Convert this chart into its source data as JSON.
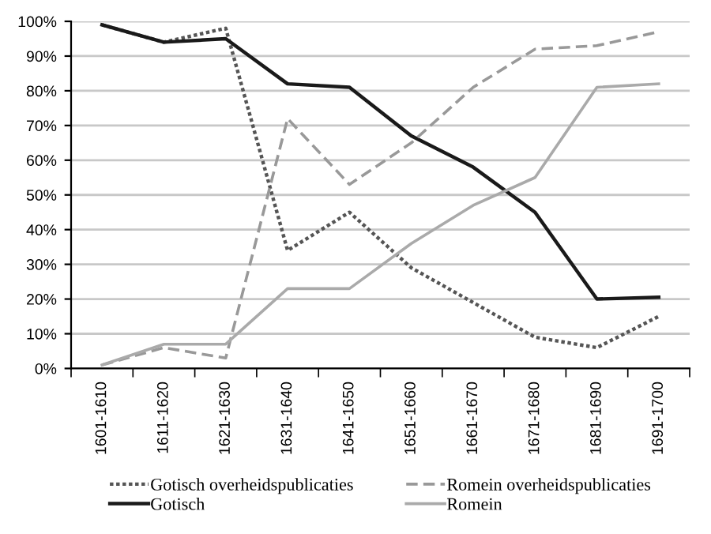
{
  "chart_data": {
    "type": "line",
    "categories": [
      "1601-1610",
      "1611-1620",
      "1621-1630",
      "1631-1640",
      "1641-1650",
      "1651-1660",
      "1661-1670",
      "1671-1680",
      "1681-1690",
      "1691-1700"
    ],
    "series": [
      {
        "name": "Gotisch overheidspublicaties",
        "color": "#555555",
        "line_style": "dotted",
        "values": [
          99,
          94,
          98,
          34,
          45,
          29,
          19,
          9,
          6,
          15
        ]
      },
      {
        "name": "Gotisch",
        "color": "#1a1a1a",
        "line_style": "solid",
        "values": [
          99,
          94,
          95,
          82,
          81,
          67,
          58,
          45,
          20,
          20.5
        ]
      },
      {
        "name": "Romein overheidspublicaties",
        "color": "#999999",
        "line_style": "dashed",
        "values": [
          1,
          6,
          3,
          72,
          53,
          65,
          81,
          92,
          93,
          97
        ]
      },
      {
        "name": "Romein",
        "color": "#aaaaaa",
        "line_style": "solid",
        "values": [
          1,
          7,
          7,
          23,
          23,
          36,
          47,
          55,
          81,
          82
        ]
      }
    ],
    "ylim": [
      0,
      100
    ],
    "yticks": [
      {
        "value": 0,
        "label": "0%"
      },
      {
        "value": 10,
        "label": "10%"
      },
      {
        "value": 20,
        "label": "20%"
      },
      {
        "value": 30,
        "label": "30%"
      },
      {
        "value": 40,
        "label": "40%"
      },
      {
        "value": 50,
        "label": "50%"
      },
      {
        "value": 60,
        "label": "60%"
      },
      {
        "value": 70,
        "label": "70%"
      },
      {
        "value": 80,
        "label": "80%"
      },
      {
        "value": 90,
        "label": "90%"
      },
      {
        "value": 100,
        "label": "100%"
      }
    ],
    "grid": "y",
    "legend": "bottom",
    "marker": "none"
  }
}
